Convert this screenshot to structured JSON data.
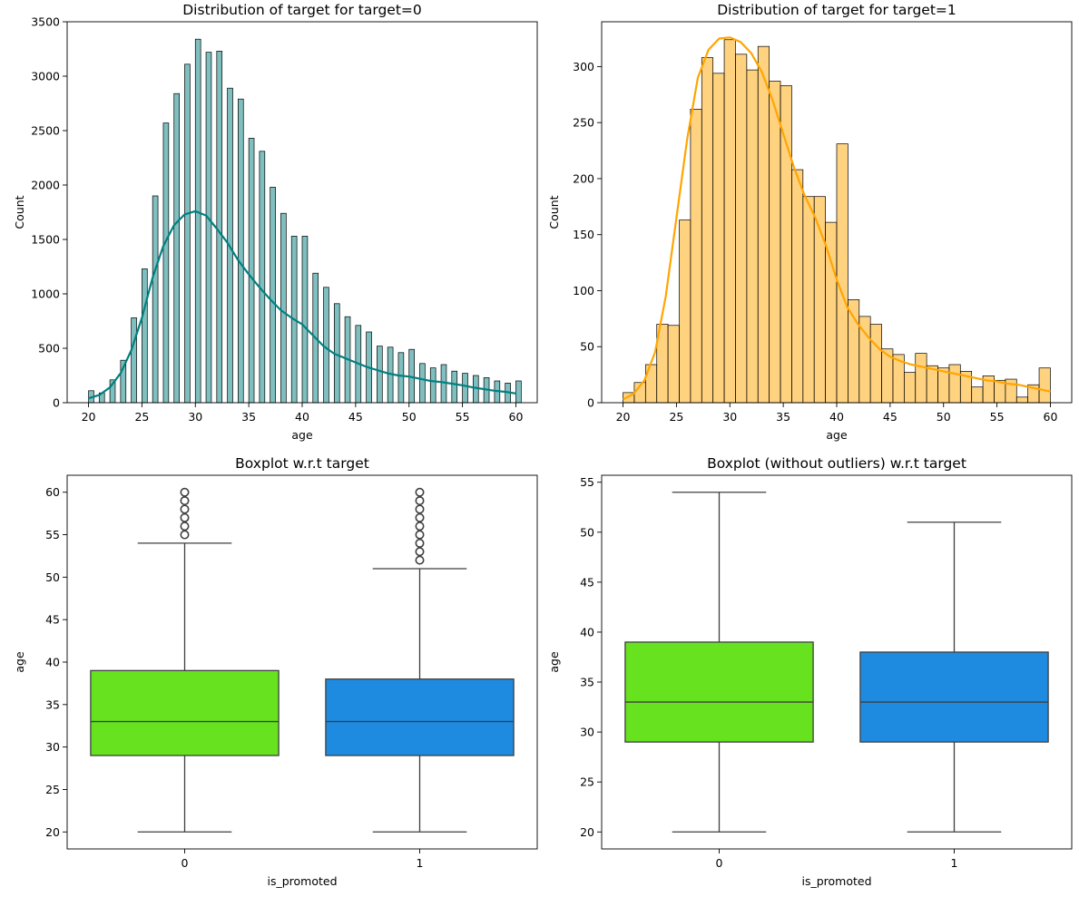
{
  "chart_data": [
    {
      "type": "histogram",
      "title": "Distribution of target for target=0",
      "xlabel": "age",
      "ylabel": "Count",
      "xlim": [
        18,
        62
      ],
      "ylim": [
        0,
        3500
      ],
      "xticks": [
        "20",
        "25",
        "30",
        "35",
        "40",
        "45",
        "50",
        "55",
        "60"
      ],
      "yticks": [
        "0",
        "500",
        "1000",
        "1500",
        "2000",
        "2500",
        "3000",
        "3500"
      ],
      "bar_color": "#008080",
      "bar_opacity": 0.5,
      "kde_color": "#008080",
      "bins": [
        {
          "x": 20,
          "count": 110
        },
        {
          "x": 21,
          "count": 90
        },
        {
          "x": 22,
          "count": 210
        },
        {
          "x": 23,
          "count": 390
        },
        {
          "x": 24,
          "count": 780
        },
        {
          "x": 25,
          "count": 1230
        },
        {
          "x": 26,
          "count": 1900
        },
        {
          "x": 27,
          "count": 2570
        },
        {
          "x": 28,
          "count": 2840
        },
        {
          "x": 29,
          "count": 3110
        },
        {
          "x": 30,
          "count": 3340
        },
        {
          "x": 31,
          "count": 3220
        },
        {
          "x": 32,
          "count": 3230
        },
        {
          "x": 33,
          "count": 2890
        },
        {
          "x": 34,
          "count": 2790
        },
        {
          "x": 35,
          "count": 2430
        },
        {
          "x": 36,
          "count": 2310
        },
        {
          "x": 37,
          "count": 1980
        },
        {
          "x": 38,
          "count": 1740
        },
        {
          "x": 39,
          "count": 1530
        },
        {
          "x": 40,
          "count": 1530
        },
        {
          "x": 41,
          "count": 1190
        },
        {
          "x": 42,
          "count": 1060
        },
        {
          "x": 43,
          "count": 910
        },
        {
          "x": 44,
          "count": 790
        },
        {
          "x": 45,
          "count": 710
        },
        {
          "x": 46,
          "count": 650
        },
        {
          "x": 47,
          "count": 520
        },
        {
          "x": 48,
          "count": 510
        },
        {
          "x": 49,
          "count": 460
        },
        {
          "x": 50,
          "count": 490
        },
        {
          "x": 51,
          "count": 360
        },
        {
          "x": 52,
          "count": 320
        },
        {
          "x": 53,
          "count": 350
        },
        {
          "x": 54,
          "count": 290
        },
        {
          "x": 55,
          "count": 270
        },
        {
          "x": 56,
          "count": 250
        },
        {
          "x": 57,
          "count": 230
        },
        {
          "x": 58,
          "count": 200
        },
        {
          "x": 59,
          "count": 180
        },
        {
          "x": 60,
          "count": 200
        }
      ],
      "bin_width_ratio": 0.5,
      "kde": {
        "x": [
          20,
          21,
          22,
          23,
          24,
          25,
          26,
          27,
          28,
          29,
          30,
          31,
          32,
          33,
          34,
          35,
          36,
          37,
          38,
          39,
          40,
          41,
          42,
          43,
          44,
          45,
          46,
          47,
          48,
          49,
          50,
          51,
          52,
          53,
          54,
          55,
          56,
          57,
          58,
          59,
          60
        ],
        "y": [
          40,
          70,
          140,
          270,
          480,
          780,
          1150,
          1440,
          1630,
          1730,
          1760,
          1720,
          1600,
          1470,
          1310,
          1180,
          1060,
          950,
          850,
          780,
          720,
          620,
          520,
          450,
          410,
          370,
          330,
          300,
          270,
          250,
          240,
          220,
          200,
          190,
          175,
          160,
          140,
          125,
          110,
          100,
          85
        ]
      }
    },
    {
      "type": "histogram",
      "title": "Distribution of target for target=1",
      "xlabel": "age",
      "ylabel": "Count",
      "xlim": [
        18,
        62
      ],
      "ylim": [
        0,
        340
      ],
      "xticks": [
        "20",
        "25",
        "30",
        "35",
        "40",
        "45",
        "50",
        "55",
        "60"
      ],
      "yticks": [
        "0",
        "50",
        "100",
        "150",
        "200",
        "250",
        "300"
      ],
      "bar_color": "#ffa500",
      "bar_opacity": 0.5,
      "kde_color": "#ffa500",
      "bins": [
        {
          "x": 20,
          "count": 9
        },
        {
          "x": 21,
          "count": 18
        },
        {
          "x": 22,
          "count": 34
        },
        {
          "x": 23,
          "count": 70
        },
        {
          "x": 24,
          "count": 69
        },
        {
          "x": 25,
          "count": 163
        },
        {
          "x": 26,
          "count": 262
        },
        {
          "x": 27,
          "count": 308
        },
        {
          "x": 28,
          "count": 294
        },
        {
          "x": 29,
          "count": 324
        },
        {
          "x": 30,
          "count": 311
        },
        {
          "x": 31,
          "count": 297
        },
        {
          "x": 32,
          "count": 318
        },
        {
          "x": 33,
          "count": 287
        },
        {
          "x": 34,
          "count": 283
        },
        {
          "x": 35,
          "count": 208
        },
        {
          "x": 36,
          "count": 184
        },
        {
          "x": 37,
          "count": 184
        },
        {
          "x": 38,
          "count": 161
        },
        {
          "x": 39,
          "count": 231
        },
        {
          "x": 40,
          "count": 92
        },
        {
          "x": 41,
          "count": 77
        },
        {
          "x": 42,
          "count": 70
        },
        {
          "x": 43,
          "count": 48
        },
        {
          "x": 44,
          "count": 43
        },
        {
          "x": 45,
          "count": 27
        },
        {
          "x": 46,
          "count": 44
        },
        {
          "x": 47,
          "count": 33
        },
        {
          "x": 48,
          "count": 31
        },
        {
          "x": 49,
          "count": 34
        },
        {
          "x": 50,
          "count": 28
        },
        {
          "x": 51,
          "count": 14
        },
        {
          "x": 52,
          "count": 24
        },
        {
          "x": 53,
          "count": 20
        },
        {
          "x": 54,
          "count": 21
        },
        {
          "x": 55,
          "count": 5
        },
        {
          "x": 56,
          "count": 16
        },
        {
          "x": 57,
          "count": 31
        }
      ],
      "bin_width_ratio": 1.0,
      "bin_width_units": 1.0526,
      "bin_start": 20,
      "kde": {
        "x": [
          20,
          21,
          22,
          23,
          24,
          25,
          26,
          27,
          28,
          29,
          30,
          31,
          32,
          33,
          34,
          35,
          36,
          37,
          38,
          39,
          40,
          41,
          42,
          43,
          44,
          45,
          46,
          47,
          48,
          49,
          50,
          51,
          52,
          53,
          54,
          55,
          56,
          57,
          58,
          59,
          60
        ],
        "y": [
          3,
          8,
          20,
          45,
          95,
          165,
          235,
          290,
          315,
          325,
          326,
          322,
          312,
          295,
          270,
          240,
          210,
          185,
          165,
          140,
          110,
          85,
          70,
          58,
          48,
          41,
          37,
          34,
          32,
          30,
          28,
          26,
          24,
          22,
          20,
          19,
          17,
          16,
          14,
          12,
          10
        ]
      }
    },
    {
      "type": "boxplot",
      "title": "Boxplot w.r.t target",
      "xlabel": "is_promoted",
      "ylabel": "age",
      "ylim": [
        18,
        62
      ],
      "yticks": [
        "20",
        "25",
        "30",
        "35",
        "40",
        "45",
        "50",
        "55",
        "60"
      ],
      "categories": [
        "0",
        "1"
      ],
      "boxes": [
        {
          "label": "0",
          "whislo": 20,
          "q1": 29,
          "med": 33,
          "q3": 39,
          "whishi": 54,
          "fliers": [
            55,
            56,
            57,
            58,
            59,
            60
          ],
          "color": "#66e21f"
        },
        {
          "label": "1",
          "whislo": 20,
          "q1": 29,
          "med": 33,
          "q3": 38,
          "whishi": 51,
          "fliers": [
            52,
            53,
            54,
            55,
            56,
            57,
            58,
            59,
            60
          ],
          "color": "#1e8be0"
        }
      ]
    },
    {
      "type": "boxplot",
      "title": "Boxplot (without outliers) w.r.t target",
      "xlabel": "is_promoted",
      "ylabel": "age",
      "ylim": [
        18.3,
        55.7
      ],
      "yticks": [
        "20",
        "25",
        "30",
        "35",
        "40",
        "45",
        "50",
        "55"
      ],
      "categories": [
        "0",
        "1"
      ],
      "boxes": [
        {
          "label": "0",
          "whislo": 20,
          "q1": 29,
          "med": 33,
          "q3": 39,
          "whishi": 54,
          "fliers": [],
          "color": "#66e21f"
        },
        {
          "label": "1",
          "whislo": 20,
          "q1": 29,
          "med": 33,
          "q3": 38,
          "whishi": 51,
          "fliers": [],
          "color": "#1e8be0"
        }
      ]
    }
  ]
}
